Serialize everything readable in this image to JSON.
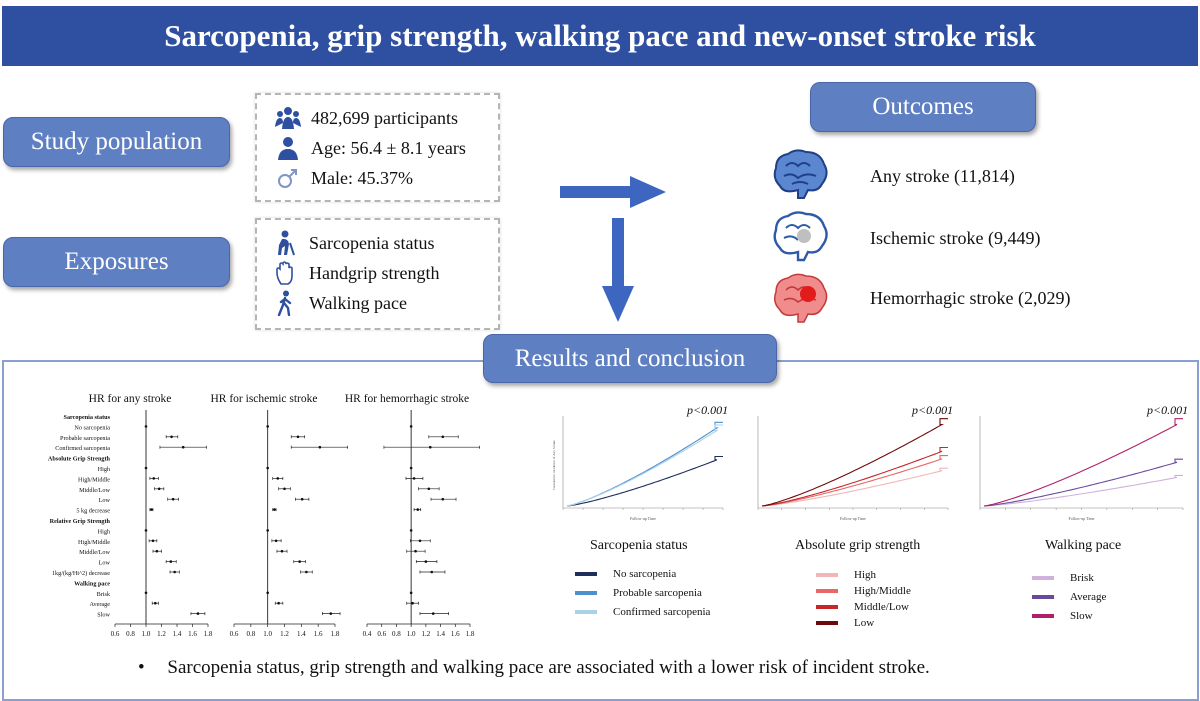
{
  "title": "Sarcopenia, grip strength, walking pace and new-onset stroke risk",
  "left_labels": {
    "study_population": "Study population",
    "exposures": "Exposures"
  },
  "population": {
    "participants": "482,699 participants",
    "age": "Age: 56.4 ± 8.1 years",
    "male": "Male: 45.37%"
  },
  "exposures": {
    "items": [
      "Sarcopenia status",
      "Handgrip strength",
      "Walking pace"
    ]
  },
  "outcomes": {
    "header": "Outcomes",
    "items": [
      {
        "label": "Any stroke (11,814)",
        "color": "#2f5aa8"
      },
      {
        "label": "Ischemic stroke (9,449)",
        "color": "#3464b4"
      },
      {
        "label": "Hemorrhagic stroke (2,029)",
        "color": "#d93a3a"
      }
    ]
  },
  "results": {
    "header": "Results and conclusion",
    "conclusion_bullet": "•",
    "conclusion": "Sarcopenia status, grip strength and walking pace are associated with a lower risk of incident stroke."
  },
  "forest": {
    "titles": [
      "HR for any stroke",
      "HR for ischemic stroke",
      "HR for hemorrhagic stroke"
    ],
    "row_labels": [
      {
        "text": "Sarcopenia status",
        "bold": true
      },
      {
        "text": "No sarcopenia",
        "bold": false
      },
      {
        "text": "Probable sarcopenia",
        "bold": false
      },
      {
        "text": "Confirmed sarcopenia",
        "bold": false
      },
      {
        "text": "Absolute Grip Strength",
        "bold": true
      },
      {
        "text": "High",
        "bold": false
      },
      {
        "text": "High/Middle",
        "bold": false
      },
      {
        "text": "Middle/Low",
        "bold": false
      },
      {
        "text": "Low",
        "bold": false
      },
      {
        "text": "5 kg decrease",
        "bold": false
      },
      {
        "text": "Relative Grip Strength",
        "bold": true
      },
      {
        "text": "High",
        "bold": false
      },
      {
        "text": "High/Middle",
        "bold": false
      },
      {
        "text": "Middle/Low",
        "bold": false
      },
      {
        "text": "Low",
        "bold": false
      },
      {
        "text": "1kg/(kg/Ht^2) decrease",
        "bold": false
      },
      {
        "text": "Walking pace",
        "bold": true
      },
      {
        "text": "Brisk",
        "bold": false
      },
      {
        "text": "Average",
        "bold": false
      },
      {
        "text": "Slow",
        "bold": false
      }
    ],
    "panels": [
      {
        "ticks": [
          "0.6",
          "0.8",
          "1.0",
          "1.2",
          "1.4",
          "1.6",
          "1.8"
        ],
        "xlim": [
          0.6,
          1.8
        ],
        "ref": 1.0,
        "points": [
          null,
          [
            1.0,
            1.0,
            1.0
          ],
          [
            1.33,
            1.26,
            1.41
          ],
          [
            1.48,
            1.18,
            1.78
          ],
          null,
          [
            1.0,
            1.0,
            1.0
          ],
          [
            1.1,
            1.05,
            1.16
          ],
          [
            1.17,
            1.11,
            1.23
          ],
          [
            1.35,
            1.28,
            1.42
          ],
          [
            1.07,
            1.05,
            1.09
          ],
          null,
          [
            1.0,
            1.0,
            1.0
          ],
          [
            1.09,
            1.04,
            1.14
          ],
          [
            1.14,
            1.09,
            1.2
          ],
          [
            1.32,
            1.26,
            1.39
          ],
          [
            1.37,
            1.31,
            1.43
          ],
          null,
          [
            1.0,
            1.0,
            1.0
          ],
          [
            1.12,
            1.08,
            1.16
          ],
          [
            1.67,
            1.58,
            1.76
          ]
        ]
      },
      {
        "ticks": [
          "0.6",
          "0.8",
          "1.0",
          "1.2",
          "1.4",
          "1.6",
          "1.8"
        ],
        "xlim": [
          0.6,
          1.8
        ],
        "ref": 1.0,
        "points": [
          null,
          [
            1.0,
            1.0,
            1.0
          ],
          [
            1.36,
            1.28,
            1.44
          ],
          [
            1.62,
            1.28,
            1.95
          ],
          null,
          [
            1.0,
            1.0,
            1.0
          ],
          [
            1.12,
            1.06,
            1.18
          ],
          [
            1.2,
            1.13,
            1.27
          ],
          [
            1.41,
            1.33,
            1.49
          ],
          [
            1.08,
            1.06,
            1.1
          ],
          null,
          [
            1.0,
            1.0,
            1.0
          ],
          [
            1.1,
            1.05,
            1.16
          ],
          [
            1.17,
            1.11,
            1.23
          ],
          [
            1.38,
            1.31,
            1.45
          ],
          [
            1.46,
            1.39,
            1.53
          ],
          null,
          [
            1.0,
            1.0,
            1.0
          ],
          [
            1.13,
            1.09,
            1.18
          ],
          [
            1.75,
            1.65,
            1.86
          ]
        ]
      },
      {
        "ticks": [
          "0.4",
          "0.6",
          "0.8",
          "1.0",
          "1.2",
          "1.4",
          "1.6",
          "1.8"
        ],
        "xlim": [
          0.4,
          1.8
        ],
        "ref": 1.0,
        "points": [
          null,
          [
            1.0,
            1.0,
            1.0
          ],
          [
            1.43,
            1.24,
            1.64
          ],
          [
            1.26,
            0.63,
            1.93
          ],
          null,
          [
            1.0,
            1.0,
            1.0
          ],
          [
            1.04,
            0.93,
            1.16
          ],
          [
            1.24,
            1.1,
            1.38
          ],
          [
            1.43,
            1.27,
            1.61
          ],
          [
            1.09,
            1.04,
            1.13
          ],
          null,
          [
            1.0,
            1.0,
            1.0
          ],
          [
            1.12,
            0.99,
            1.26
          ],
          [
            1.06,
            0.94,
            1.19
          ],
          [
            1.2,
            1.07,
            1.35
          ],
          [
            1.28,
            1.12,
            1.46
          ],
          null,
          [
            1.0,
            1.0,
            1.0
          ],
          [
            1.02,
            0.94,
            1.1
          ],
          [
            1.3,
            1.12,
            1.51
          ]
        ]
      }
    ]
  },
  "km": {
    "p_label": "p<0.001",
    "xlabel": "Follow-up Time",
    "ylabel": "Cumulative incidence of Any Stroke",
    "panels": [
      {
        "legend_title": "Sarcopenia status",
        "series": [
          {
            "name": "No sarcopenia",
            "color": "#1f2f5c",
            "end": 0.55
          },
          {
            "name": "Probable sarcopenia",
            "color": "#4f8fce",
            "end": 0.93
          },
          {
            "name": "Confirmed sarcopenia",
            "color": "#a9d2e6",
            "end": 0.9
          }
        ]
      },
      {
        "legend_title": "Absolute grip strength",
        "series": [
          {
            "name": "High",
            "color": "#f2b6b6",
            "end": 0.42
          },
          {
            "name": "High/Middle",
            "color": "#e76868",
            "end": 0.56
          },
          {
            "name": "Middle/Low",
            "color": "#c62828",
            "end": 0.65
          },
          {
            "name": "Low",
            "color": "#6e0a0a",
            "end": 0.97
          }
        ]
      },
      {
        "legend_title": "Walking pace",
        "series": [
          {
            "name": "Brisk",
            "color": "#cfb2dc",
            "end": 0.34
          },
          {
            "name": "Average",
            "color": "#6a4a9c",
            "end": 0.52
          },
          {
            "name": "Slow",
            "color": "#b0206a",
            "end": 0.97
          }
        ]
      }
    ]
  }
}
